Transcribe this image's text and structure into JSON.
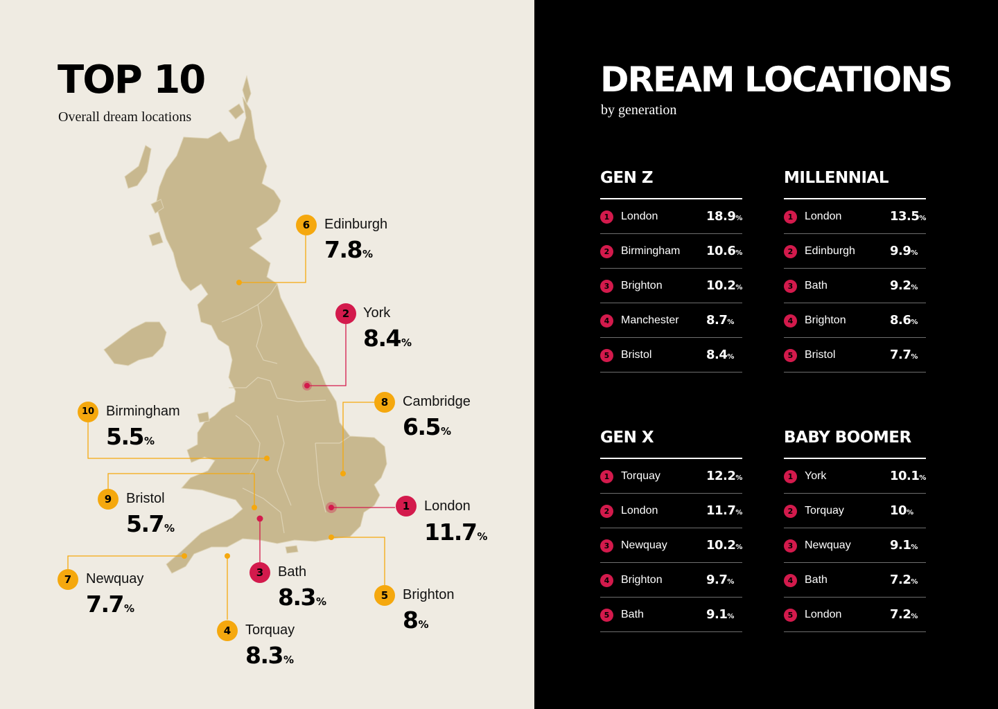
{
  "left": {
    "title": "TOP 10",
    "subtitle": "Overall dream locations",
    "locations": [
      {
        "rank": "1",
        "city": "London",
        "value": "11.7",
        "unit": "%",
        "color": "#d31a4c"
      },
      {
        "rank": "2",
        "city": "York",
        "value": "8.4",
        "unit": "%",
        "color": "#d31a4c"
      },
      {
        "rank": "3",
        "city": "Bath",
        "value": "8.3",
        "unit": "%",
        "color": "#d31a4c"
      },
      {
        "rank": "4",
        "city": "Torquay",
        "value": "8.3",
        "unit": "%",
        "color": "#f5a80e"
      },
      {
        "rank": "5",
        "city": "Brighton",
        "value": "8",
        "unit": "%",
        "color": "#f5a80e"
      },
      {
        "rank": "6",
        "city": "Edinburgh",
        "value": "7.8",
        "unit": "%",
        "color": "#f5a80e"
      },
      {
        "rank": "7",
        "city": "Newquay",
        "value": "7.7",
        "unit": "%",
        "color": "#f5a80e"
      },
      {
        "rank": "8",
        "city": "Cambridge",
        "value": "6.5",
        "unit": "%",
        "color": "#f5a80e"
      },
      {
        "rank": "9",
        "city": "Bristol",
        "value": "5.7",
        "unit": "%",
        "color": "#f5a80e"
      },
      {
        "rank": "10",
        "city": "Birmingham",
        "value": "5.5",
        "unit": "%",
        "color": "#f5a80e"
      }
    ]
  },
  "right": {
    "title": "DREAM LOCATIONS",
    "subtitle": "by generation",
    "generations": [
      {
        "name": "GEN Z",
        "rows": [
          {
            "rank": "1",
            "city": "London",
            "value": "18.9",
            "unit": "%"
          },
          {
            "rank": "2",
            "city": "Birmingham",
            "value": "10.6",
            "unit": "%"
          },
          {
            "rank": "3",
            "city": "Brighton",
            "value": "10.2",
            "unit": "%"
          },
          {
            "rank": "4",
            "city": "Manchester",
            "value": "8.7",
            "unit": "%"
          },
          {
            "rank": "5",
            "city": "Bristol",
            "value": "8.4",
            "unit": "%"
          }
        ]
      },
      {
        "name": "MILLENNIAL",
        "rows": [
          {
            "rank": "1",
            "city": "London",
            "value": "13.5",
            "unit": "%"
          },
          {
            "rank": "2",
            "city": "Edinburgh",
            "value": "9.9",
            "unit": "%"
          },
          {
            "rank": "3",
            "city": "Bath",
            "value": "9.2",
            "unit": "%"
          },
          {
            "rank": "4",
            "city": "Brighton",
            "value": "8.6",
            "unit": "%"
          },
          {
            "rank": "5",
            "city": "Bristol",
            "value": "7.7",
            "unit": "%"
          }
        ]
      },
      {
        "name": "GEN X",
        "rows": [
          {
            "rank": "1",
            "city": "Torquay",
            "value": "12.2",
            "unit": "%"
          },
          {
            "rank": "2",
            "city": "London",
            "value": "11.7",
            "unit": "%"
          },
          {
            "rank": "3",
            "city": "Newquay",
            "value": "10.2",
            "unit": "%"
          },
          {
            "rank": "4",
            "city": "Brighton",
            "value": "9.7",
            "unit": "%"
          },
          {
            "rank": "5",
            "city": "Bath",
            "value": "9.1",
            "unit": "%"
          }
        ]
      },
      {
        "name": "BABY BOOMER",
        "rows": [
          {
            "rank": "1",
            "city": "York",
            "value": "10.1",
            "unit": "%"
          },
          {
            "rank": "2",
            "city": "Torquay",
            "value": "10",
            "unit": "%"
          },
          {
            "rank": "3",
            "city": "Newquay",
            "value": "9.1",
            "unit": "%"
          },
          {
            "rank": "4",
            "city": "Bath",
            "value": "7.2",
            "unit": "%"
          },
          {
            "rank": "5",
            "city": "London",
            "value": "7.2",
            "unit": "%"
          }
        ]
      }
    ]
  },
  "colors": {
    "left_bg": "#efebe2",
    "right_bg": "#000000",
    "land": "#c8b88f",
    "top3": "#d31a4c",
    "rest": "#f5a80e"
  }
}
